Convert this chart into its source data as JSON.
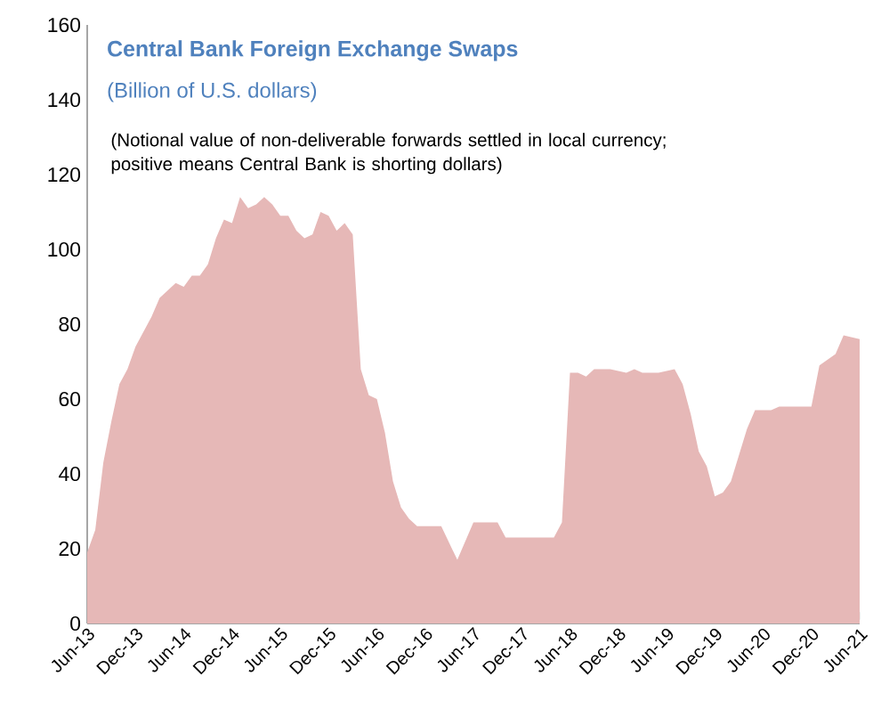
{
  "chart_data": {
    "type": "area",
    "title": "Central Bank Foreign Exchange Swaps",
    "subtitle": "(Billion of U.S. dollars)",
    "annotations": [
      "(Notional value of non-deliverable forwards settled in local currency; positive means Central Bank is shorting dollars)"
    ],
    "x": [
      "2013-06",
      "2013-07",
      "2013-08",
      "2013-09",
      "2013-10",
      "2013-11",
      "2013-12",
      "2014-02",
      "2014-03",
      "2014-05",
      "2014-06",
      "2014-07",
      "2014-08",
      "2014-09",
      "2014-10",
      "2014-11",
      "2014-12",
      "2015-01",
      "2015-02",
      "2015-03",
      "2015-04",
      "2015-05",
      "2015-06",
      "2015-07",
      "2015-08",
      "2015-09",
      "2015-10",
      "2015-11",
      "2015-12",
      "2016-01",
      "2016-02",
      "2016-03",
      "2016-04",
      "2016-05",
      "2016-06",
      "2016-07",
      "2016-08",
      "2016-09",
      "2016-10",
      "2016-11",
      "2017-01",
      "2017-02",
      "2017-04",
      "2017-06",
      "2017-09",
      "2017-10",
      "2018-01",
      "2018-04",
      "2018-05",
      "2018-06",
      "2018-07",
      "2018-08",
      "2018-09",
      "2018-11",
      "2019-01",
      "2019-02",
      "2019-03",
      "2019-05",
      "2019-07",
      "2019-08",
      "2019-09",
      "2019-10",
      "2019-11",
      "2019-12",
      "2020-01",
      "2020-02",
      "2020-04",
      "2020-05",
      "2020-07",
      "2020-08",
      "2020-10",
      "2020-12",
      "2021-01",
      "2021-03",
      "2021-04",
      "2021-06"
    ],
    "values": [
      19,
      25,
      43,
      54,
      64,
      68,
      74,
      82,
      87,
      91,
      90,
      93,
      93,
      96,
      103,
      108,
      107,
      114,
      111,
      112,
      114,
      112,
      109,
      109,
      105,
      103,
      104,
      110,
      109,
      105,
      107,
      104,
      68,
      61,
      60,
      51,
      38,
      31,
      28,
      26,
      26,
      26,
      17,
      27,
      27,
      23,
      23,
      23,
      27,
      67,
      67,
      66,
      68,
      68,
      67,
      68,
      67,
      67,
      68,
      64,
      56,
      46,
      42,
      34,
      35,
      38,
      52,
      57,
      57,
      58,
      58,
      58,
      69,
      72,
      77,
      76
    ],
    "color": "#e6b8b7",
    "xlim": [
      "2013-06",
      "2021-06"
    ],
    "xticks": [
      {
        "value": "2013-06",
        "label": "Jun-13"
      },
      {
        "value": "2013-12",
        "label": "Dec-13"
      },
      {
        "value": "2014-06",
        "label": "Jun-14"
      },
      {
        "value": "2014-12",
        "label": "Dec-14"
      },
      {
        "value": "2015-06",
        "label": "Jun-15"
      },
      {
        "value": "2015-12",
        "label": "Dec-15"
      },
      {
        "value": "2016-06",
        "label": "Jun-16"
      },
      {
        "value": "2016-12",
        "label": "Dec-16"
      },
      {
        "value": "2017-06",
        "label": "Jun-17"
      },
      {
        "value": "2017-12",
        "label": "Dec-17"
      },
      {
        "value": "2018-06",
        "label": "Jun-18"
      },
      {
        "value": "2018-12",
        "label": "Dec-18"
      },
      {
        "value": "2019-06",
        "label": "Jun-19"
      },
      {
        "value": "2019-12",
        "label": "Dec-19"
      },
      {
        "value": "2020-06",
        "label": "Jun-20"
      },
      {
        "value": "2020-12",
        "label": "Dec-20"
      },
      {
        "value": "2021-06",
        "label": "Jun-21"
      }
    ],
    "ylim": [
      0,
      160
    ],
    "yticks": [
      0,
      20,
      40,
      60,
      80,
      100,
      120,
      140,
      160
    ]
  }
}
